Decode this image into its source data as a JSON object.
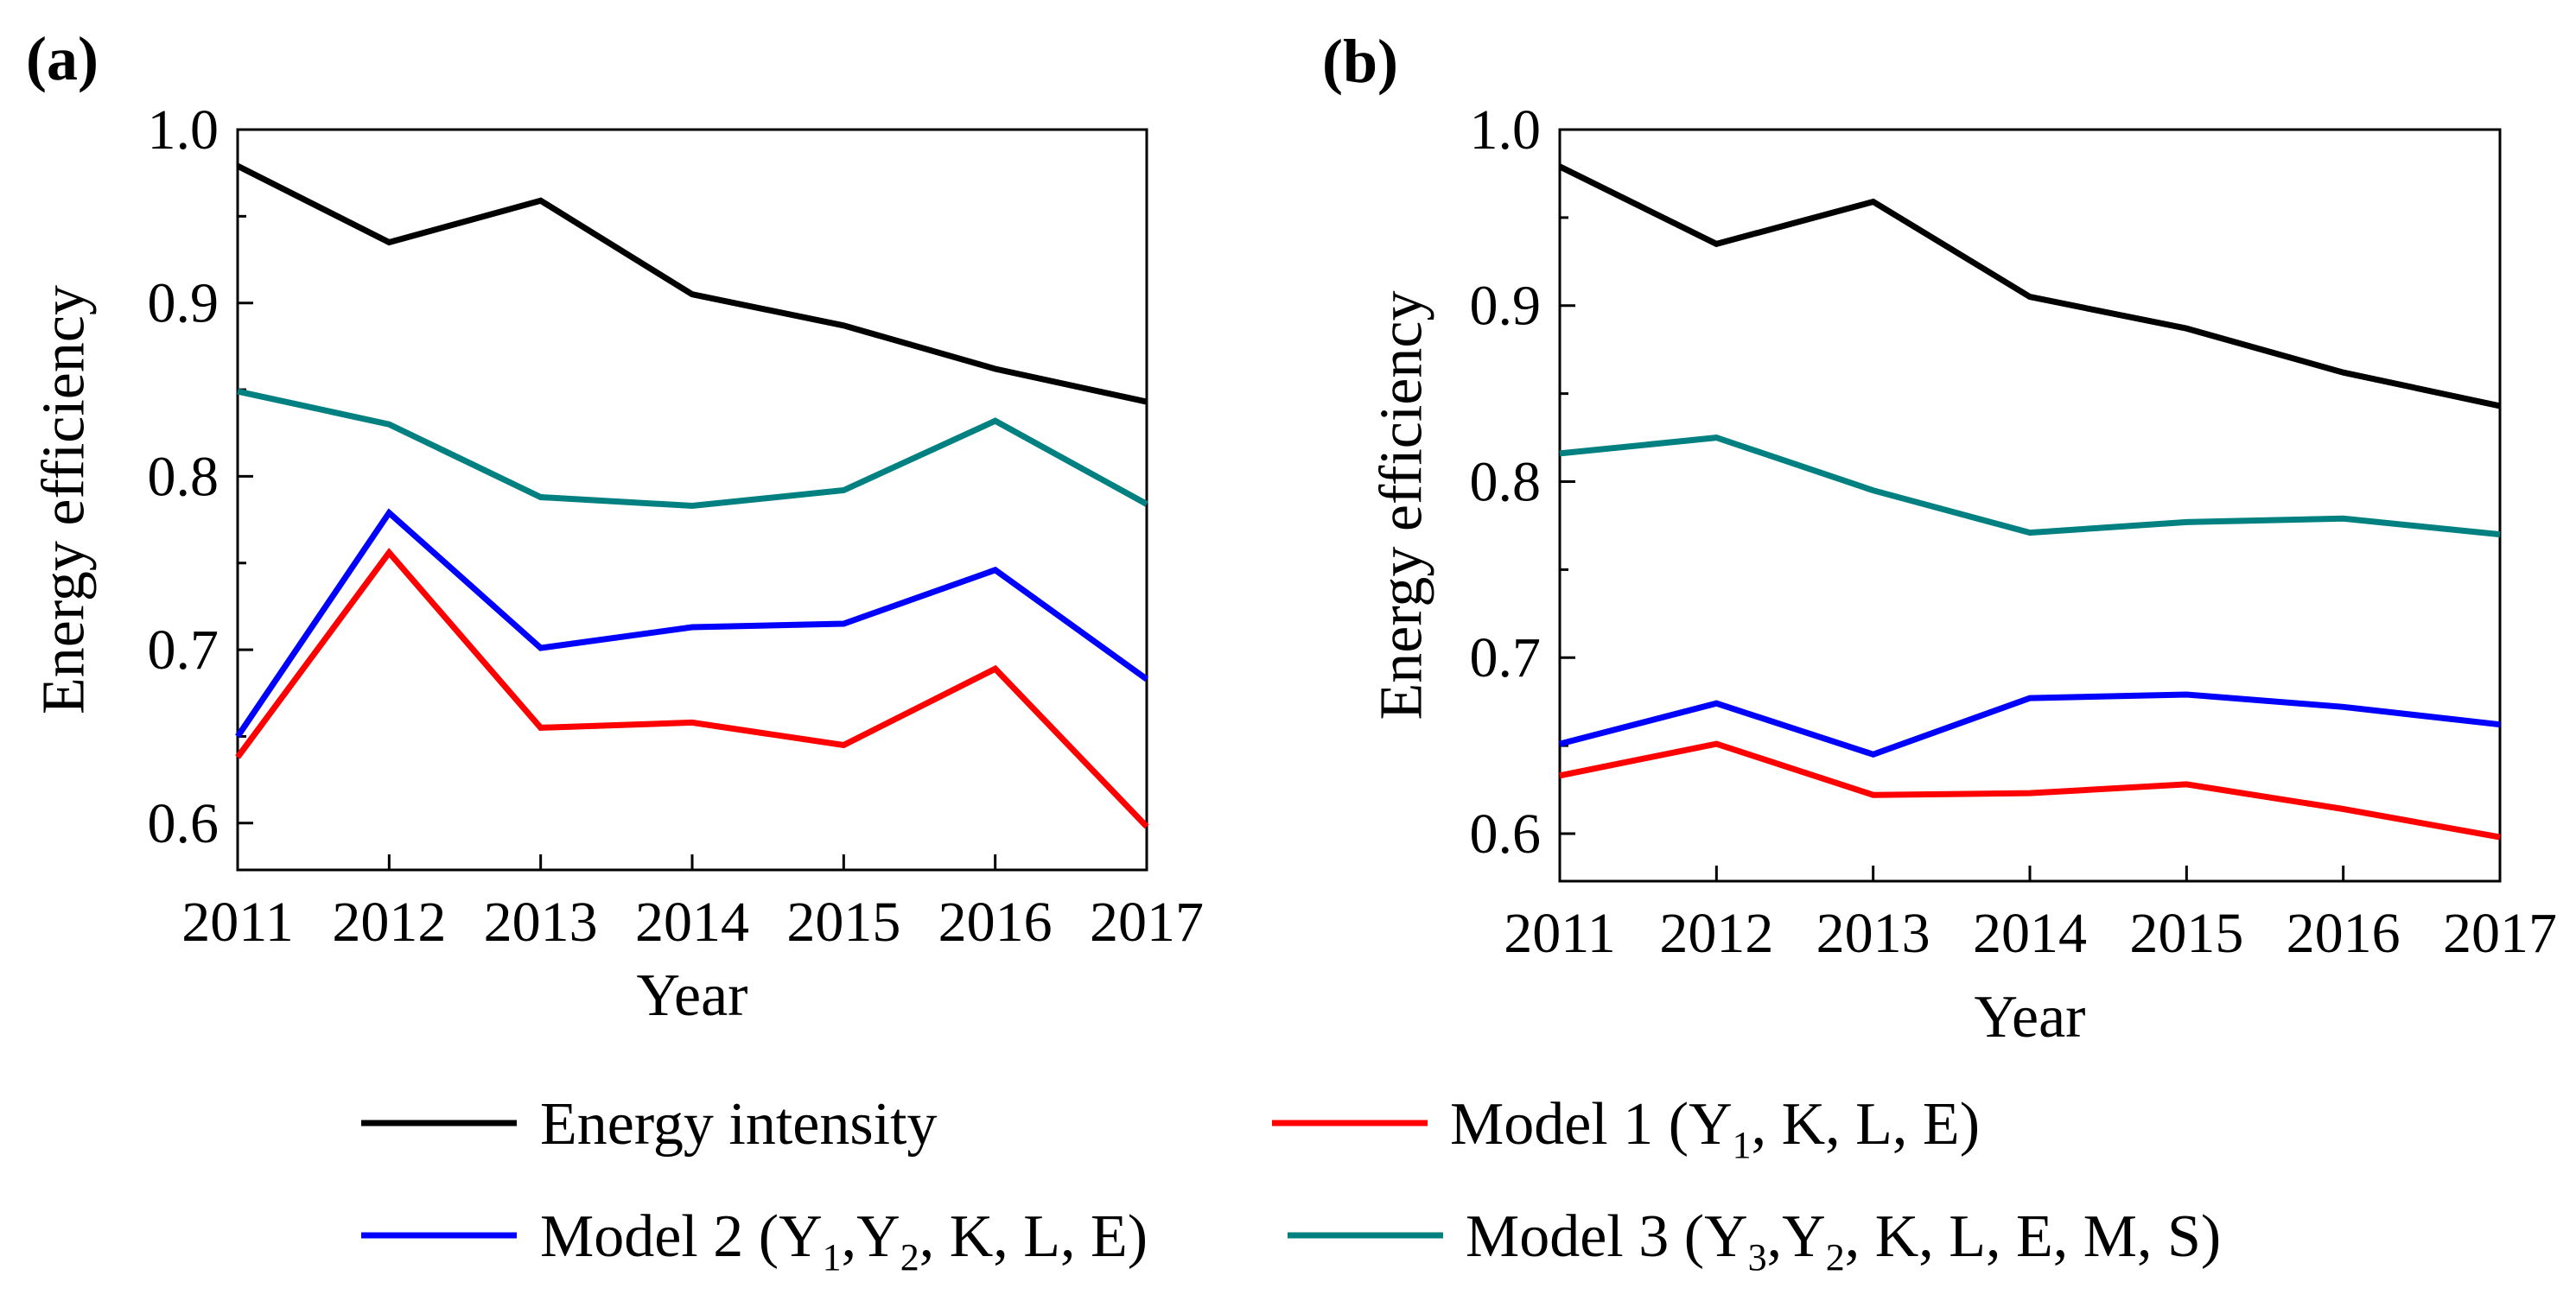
{
  "legend": [
    {
      "label": "Energy intensity",
      "color": "#000000"
    },
    {
      "label_parts": [
        {
          "t": "Model 1 (Y"
        },
        {
          "t": "1",
          "sub": true
        },
        {
          "t": ", K, L, E)"
        }
      ],
      "color": "#ff0000"
    },
    {
      "label_parts": [
        {
          "t": "Model 2 (Y"
        },
        {
          "t": "1",
          "sub": true
        },
        {
          "t": ",Y"
        },
        {
          "t": "2",
          "sub": true
        },
        {
          "t": ", K, L, E)"
        }
      ],
      "color": "#0000ff"
    },
    {
      "label_parts": [
        {
          "t": "Model 3 (Y"
        },
        {
          "t": "3",
          "sub": true
        },
        {
          "t": ",Y"
        },
        {
          "t": "2",
          "sub": true
        },
        {
          "t": ", K, L, E, M, S)"
        }
      ],
      "color": "#008080"
    }
  ],
  "chart_data": [
    {
      "panel": "(a)",
      "type": "line",
      "xlabel": "Year",
      "ylabel": "Energy efficiency",
      "x": [
        2011,
        2012,
        2013,
        2014,
        2015,
        2016,
        2017
      ],
      "xticks": [
        "2011",
        "2012",
        "2013",
        "2014",
        "2015",
        "2016",
        "2017"
      ],
      "yticks": [
        "0.6",
        "0.7",
        "0.8",
        "0.9",
        "1.0"
      ],
      "ylim": [
        0.573,
        1.0
      ],
      "grid": false,
      "series": [
        {
          "color": "#000000",
          "values": [
            0.979,
            0.935,
            0.959,
            0.905,
            0.887,
            0.862,
            0.843
          ]
        },
        {
          "color": "#008080",
          "values": [
            0.849,
            0.83,
            0.788,
            0.783,
            0.792,
            0.832,
            0.784
          ]
        },
        {
          "color": "#0000ff",
          "values": [
            0.65,
            0.779,
            0.701,
            0.713,
            0.715,
            0.746,
            0.683
          ]
        },
        {
          "color": "#ff0000",
          "values": [
            0.638,
            0.756,
            0.655,
            0.658,
            0.645,
            0.689,
            0.598
          ]
        }
      ]
    },
    {
      "panel": "(b)",
      "type": "line",
      "xlabel": "Year",
      "ylabel": "Energy efficiency",
      "x": [
        2011,
        2012,
        2013,
        2014,
        2015,
        2016,
        2017
      ],
      "xticks": [
        "2011",
        "2012",
        "2013",
        "2014",
        "2015",
        "2016",
        "2017"
      ],
      "yticks": [
        "0.6",
        "0.7",
        "0.8",
        "0.9",
        "1.0"
      ],
      "ylim": [
        0.573,
        1.0
      ],
      "grid": false,
      "series": [
        {
          "color": "#000000",
          "values": [
            0.979,
            0.935,
            0.959,
            0.905,
            0.887,
            0.862,
            0.843
          ]
        },
        {
          "color": "#008080",
          "values": [
            0.816,
            0.825,
            0.795,
            0.771,
            0.777,
            0.779,
            0.77
          ]
        },
        {
          "color": "#0000ff",
          "values": [
            0.651,
            0.674,
            0.645,
            0.677,
            0.679,
            0.672,
            0.662
          ]
        },
        {
          "color": "#ff0000",
          "values": [
            0.633,
            0.651,
            0.622,
            0.623,
            0.628,
            0.614,
            0.598
          ]
        }
      ]
    }
  ]
}
